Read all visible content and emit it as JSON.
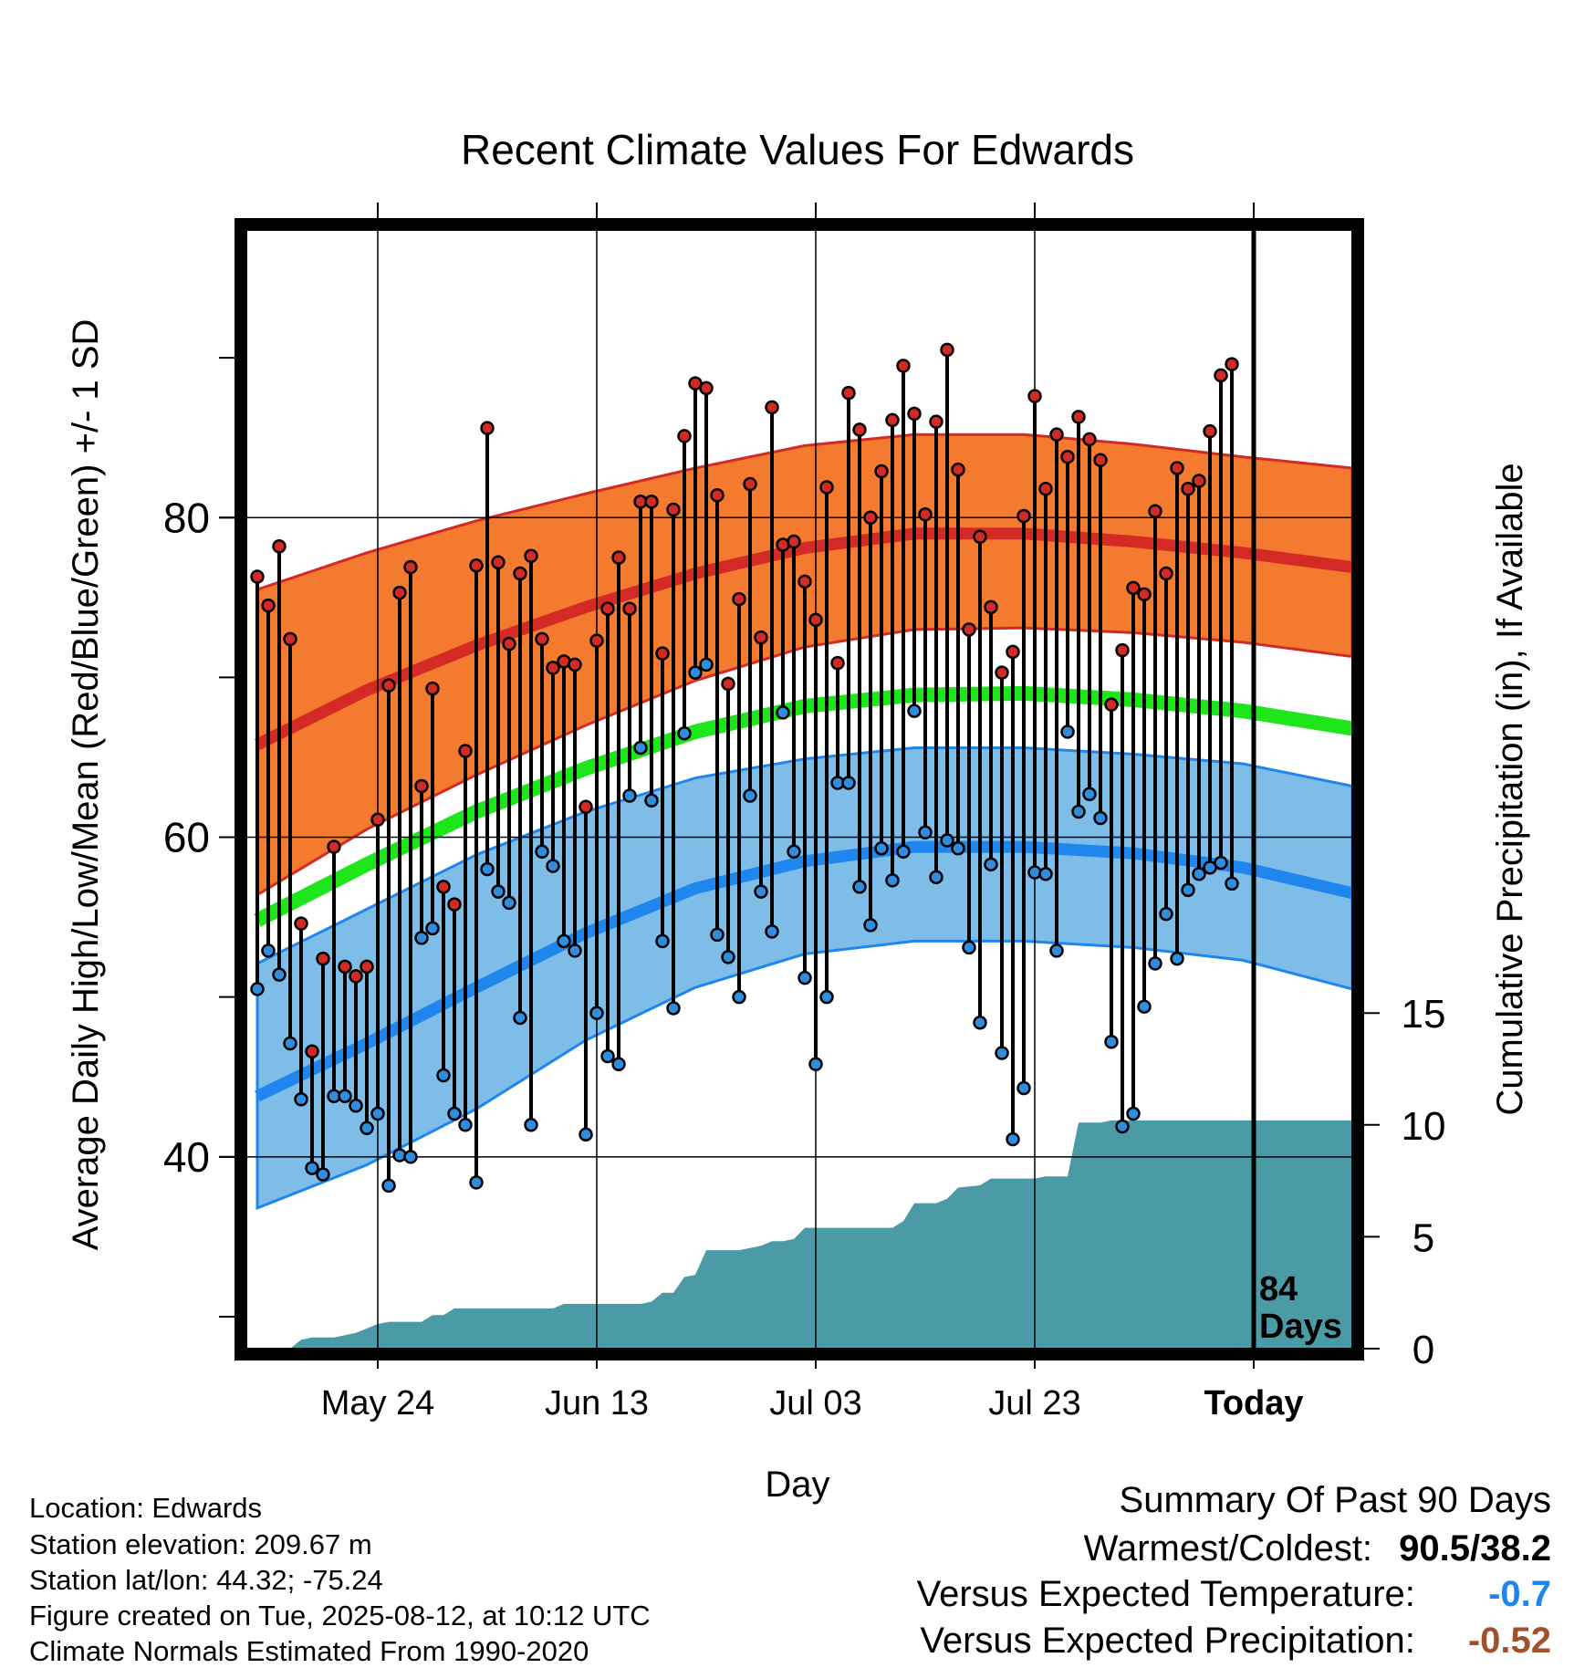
{
  "chart_data": {
    "type": "line",
    "title": "Recent Climate Values For Edwards",
    "xlabel": "Day",
    "ylabel": "Average Daily High/Low/Mean (Red/Blue/Green) +/- 1 SD",
    "y2label": "Cumulative Precipitation (in), If Available",
    "ylim": [
      28,
      98
    ],
    "y2lim": [
      0,
      50
    ],
    "x_ticks": [
      {
        "day": 20,
        "label": "May 24"
      },
      {
        "day": 40,
        "label": "Jun 13"
      },
      {
        "day": 60,
        "label": "Jul 03"
      },
      {
        "day": 80,
        "label": "Jul 23"
      },
      {
        "day": 100,
        "label": "Today"
      }
    ],
    "y_ticks": [
      40,
      60,
      80
    ],
    "y2_ticks": [
      0,
      5,
      10,
      15
    ],
    "today_day": 100,
    "today_annotation": [
      "84",
      "Days"
    ],
    "normals": {
      "days": [
        9,
        19,
        29,
        39,
        49,
        59,
        69,
        79,
        89,
        99,
        109
      ],
      "high_mean": [
        65.8,
        69.2,
        72.0,
        74.4,
        76.5,
        78.1,
        79.0,
        79.0,
        78.5,
        77.8,
        76.9
      ],
      "high_plus_sd": [
        75.5,
        77.8,
        79.8,
        81.5,
        83.1,
        84.5,
        85.2,
        85.2,
        84.6,
        83.8,
        83.1
      ],
      "high_minus_sd": [
        56.4,
        60.5,
        63.9,
        67.0,
        69.8,
        71.9,
        73.0,
        73.1,
        72.8,
        72.2,
        71.3
      ],
      "mean": [
        54.8,
        58.3,
        61.6,
        64.3,
        66.6,
        68.2,
        68.9,
        69.0,
        68.6,
        67.9,
        66.8
      ],
      "low_mean": [
        43.8,
        47.1,
        50.6,
        54.0,
        56.8,
        58.5,
        59.4,
        59.4,
        59.0,
        58.1,
        56.5
      ],
      "low_plus_sd": [
        52.1,
        55.5,
        58.9,
        61.6,
        63.7,
        64.9,
        65.6,
        65.6,
        65.2,
        64.6,
        63.2
      ],
      "low_minus_sd": [
        36.8,
        39.5,
        43.0,
        47.3,
        50.6,
        52.7,
        53.5,
        53.5,
        53.1,
        52.3,
        50.5
      ]
    },
    "daily": [
      {
        "day": 9,
        "high": 76.3,
        "low": 50.5
      },
      {
        "day": 10,
        "high": 74.5,
        "low": 52.9
      },
      {
        "day": 11,
        "high": 78.2,
        "low": 51.4
      },
      {
        "day": 12,
        "high": 72.4,
        "low": 47.1
      },
      {
        "day": 13,
        "high": 54.6,
        "low": 43.6
      },
      {
        "day": 14,
        "high": 46.6,
        "low": 39.3
      },
      {
        "day": 15,
        "high": 52.4,
        "low": 38.9
      },
      {
        "day": 16,
        "high": 59.4,
        "low": 43.8
      },
      {
        "day": 17,
        "high": 51.9,
        "low": 43.8
      },
      {
        "day": 18,
        "high": 51.3,
        "low": 43.2
      },
      {
        "day": 19,
        "high": 51.9,
        "low": 41.8
      },
      {
        "day": 20,
        "high": 61.1,
        "low": 42.7
      },
      {
        "day": 21,
        "high": 69.5,
        "low": 38.2
      },
      {
        "day": 22,
        "high": 75.3,
        "low": 40.1
      },
      {
        "day": 23,
        "high": 76.9,
        "low": 40.0
      },
      {
        "day": 24,
        "high": 63.2,
        "low": 53.7
      },
      {
        "day": 25,
        "high": 69.3,
        "low": 54.3
      },
      {
        "day": 26,
        "high": 56.9,
        "low": 45.1
      },
      {
        "day": 27,
        "high": 55.8,
        "low": 42.7
      },
      {
        "day": 28,
        "high": 65.4,
        "low": 42.0
      },
      {
        "day": 29,
        "high": 77.0,
        "low": 38.4
      },
      {
        "day": 30,
        "high": 85.6,
        "low": 58.0
      },
      {
        "day": 31,
        "high": 77.2,
        "low": 56.6
      },
      {
        "day": 32,
        "high": 72.1,
        "low": 55.9
      },
      {
        "day": 33,
        "high": 76.5,
        "low": 48.7
      },
      {
        "day": 34,
        "high": 77.6,
        "low": 42.0
      },
      {
        "day": 35,
        "high": 72.4,
        "low": 59.1
      },
      {
        "day": 36,
        "high": 70.6,
        "low": 58.2
      },
      {
        "day": 37,
        "high": 71.0,
        "low": 53.5
      },
      {
        "day": 38,
        "high": 70.8,
        "low": 52.9
      },
      {
        "day": 39,
        "high": 61.9,
        "low": 41.4
      },
      {
        "day": 40,
        "high": 72.3,
        "low": 49.0
      },
      {
        "day": 41,
        "high": 74.3,
        "low": 46.3
      },
      {
        "day": 42,
        "high": 77.5,
        "low": 45.8
      },
      {
        "day": 43,
        "high": 74.3,
        "low": 62.6
      },
      {
        "day": 44,
        "high": 81.0,
        "low": 65.6
      },
      {
        "day": 45,
        "high": 81.0,
        "low": 62.3
      },
      {
        "day": 46,
        "high": 71.5,
        "low": 53.5
      },
      {
        "day": 47,
        "high": 80.5,
        "low": 49.3
      },
      {
        "day": 48,
        "high": 85.1,
        "low": 66.5
      },
      {
        "day": 49,
        "high": 88.4,
        "low": 70.3
      },
      {
        "day": 50,
        "high": 88.1,
        "low": 70.8
      },
      {
        "day": 51,
        "high": 81.4,
        "low": 53.9
      },
      {
        "day": 52,
        "high": 69.6,
        "low": 52.5
      },
      {
        "day": 53,
        "high": 74.9,
        "low": 50.0
      },
      {
        "day": 54,
        "high": 82.1,
        "low": 62.6
      },
      {
        "day": 55,
        "high": 72.5,
        "low": 56.6
      },
      {
        "day": 56,
        "high": 86.9,
        "low": 54.1
      },
      {
        "day": 57,
        "high": 78.3,
        "low": 67.8
      },
      {
        "day": 58,
        "high": 78.5,
        "low": 59.1
      },
      {
        "day": 59,
        "high": 76.0,
        "low": 51.2
      },
      {
        "day": 60,
        "high": 73.6,
        "low": 45.8
      },
      {
        "day": 61,
        "high": 81.9,
        "low": 50.0
      },
      {
        "day": 62,
        "high": 70.9,
        "low": 63.4
      },
      {
        "day": 63,
        "high": 87.8,
        "low": 63.4
      },
      {
        "day": 64,
        "high": 85.5,
        "low": 56.9
      },
      {
        "day": 65,
        "high": 80.0,
        "low": 54.5
      },
      {
        "day": 66,
        "high": 82.9,
        "low": 59.3
      },
      {
        "day": 67,
        "high": 86.1,
        "low": 57.3
      },
      {
        "day": 68,
        "high": 89.5,
        "low": 59.1
      },
      {
        "day": 69,
        "high": 86.5,
        "low": 67.9
      },
      {
        "day": 70,
        "high": 80.2,
        "low": 60.3
      },
      {
        "day": 71,
        "high": 86.0,
        "low": 57.5
      },
      {
        "day": 72,
        "high": 90.5,
        "low": 59.8
      },
      {
        "day": 73,
        "high": 83.0,
        "low": 59.3
      },
      {
        "day": 74,
        "high": 73.0,
        "low": 53.1
      },
      {
        "day": 75,
        "high": 78.8,
        "low": 48.4
      },
      {
        "day": 76,
        "high": 74.4,
        "low": 58.3
      },
      {
        "day": 77,
        "high": 70.3,
        "low": 46.5
      },
      {
        "day": 78,
        "high": 71.6,
        "low": 41.1
      },
      {
        "day": 79,
        "high": 80.1,
        "low": 44.3
      },
      {
        "day": 80,
        "high": 87.6,
        "low": 57.8
      },
      {
        "day": 81,
        "high": 81.8,
        "low": 57.7
      },
      {
        "day": 82,
        "high": 85.2,
        "low": 52.9
      },
      {
        "day": 83,
        "high": 83.8,
        "low": 66.6
      },
      {
        "day": 84,
        "high": 86.3,
        "low": 61.6
      },
      {
        "day": 85,
        "high": 84.9,
        "low": 62.7
      },
      {
        "day": 86,
        "high": 83.6,
        "low": 61.2
      },
      {
        "day": 87,
        "high": 68.3,
        "low": 47.2
      },
      {
        "day": 88,
        "high": 71.7,
        "low": 41.9
      },
      {
        "day": 89,
        "high": 75.6,
        "low": 42.7
      },
      {
        "day": 90,
        "high": 75.2,
        "low": 49.4
      },
      {
        "day": 91,
        "high": 80.4,
        "low": 52.1
      },
      {
        "day": 92,
        "high": 76.5,
        "low": 55.2
      },
      {
        "day": 93,
        "high": 83.1,
        "low": 52.4
      },
      {
        "day": 94,
        "high": 81.8,
        "low": 56.7
      },
      {
        "day": 95,
        "high": 82.3,
        "low": 57.7
      },
      {
        "day": 96,
        "high": 85.4,
        "low": 58.1
      },
      {
        "day": 97,
        "high": 88.9,
        "low": 58.4
      },
      {
        "day": 98,
        "high": 89.6,
        "low": 57.1
      }
    ],
    "precip_cumulative": [
      {
        "day": 12,
        "value": 0
      },
      {
        "day": 13,
        "value": 0.4
      },
      {
        "day": 14,
        "value": 0.5
      },
      {
        "day": 16,
        "value": 0.5
      },
      {
        "day": 17,
        "value": 0.6
      },
      {
        "day": 18,
        "value": 0.7
      },
      {
        "day": 20,
        "value": 1.1
      },
      {
        "day": 21,
        "value": 1.2
      },
      {
        "day": 24,
        "value": 1.2
      },
      {
        "day": 25,
        "value": 1.5
      },
      {
        "day": 26,
        "value": 1.5
      },
      {
        "day": 27,
        "value": 1.8
      },
      {
        "day": 36,
        "value": 1.8
      },
      {
        "day": 37,
        "value": 2.0
      },
      {
        "day": 44,
        "value": 2.0
      },
      {
        "day": 45,
        "value": 2.1
      },
      {
        "day": 46,
        "value": 2.5
      },
      {
        "day": 47,
        "value": 2.5
      },
      {
        "day": 48,
        "value": 3.2
      },
      {
        "day": 49,
        "value": 3.3
      },
      {
        "day": 50,
        "value": 4.4
      },
      {
        "day": 53,
        "value": 4.4
      },
      {
        "day": 54,
        "value": 4.5
      },
      {
        "day": 55,
        "value": 4.6
      },
      {
        "day": 56,
        "value": 4.8
      },
      {
        "day": 57,
        "value": 4.8
      },
      {
        "day": 58,
        "value": 4.9
      },
      {
        "day": 59,
        "value": 5.4
      },
      {
        "day": 67,
        "value": 5.4
      },
      {
        "day": 68,
        "value": 5.7
      },
      {
        "day": 69,
        "value": 6.5
      },
      {
        "day": 71,
        "value": 6.5
      },
      {
        "day": 72,
        "value": 6.7
      },
      {
        "day": 73,
        "value": 7.2
      },
      {
        "day": 75,
        "value": 7.3
      },
      {
        "day": 76,
        "value": 7.6
      },
      {
        "day": 80,
        "value": 7.6
      },
      {
        "day": 81,
        "value": 7.7
      },
      {
        "day": 83,
        "value": 7.7
      },
      {
        "day": 84,
        "value": 10.1
      },
      {
        "day": 86,
        "value": 10.1
      },
      {
        "day": 87,
        "value": 10.2
      },
      {
        "day": 109,
        "value": 10.2
      }
    ],
    "colors": {
      "high_band": "#f47a2f",
      "high_line": "#d42a26",
      "mean_line": "#1ee61a",
      "low_band": "#7ebde8",
      "low_line": "#1f86ee",
      "precip": "#4a9ba6",
      "high_dot": "#d42a26",
      "low_dot": "#2f8de0"
    },
    "grid": true
  },
  "info": {
    "location": "Location: Edwards",
    "elevation": "Station elevation: 209.67 m",
    "latlon": "Station lat/lon: 44.32; -75.24",
    "created": "Figure created on Tue, 2025-08-12, at 10:12 UTC",
    "normals": "Climate Normals Estimated From 1990-2020"
  },
  "summary": {
    "title": "Summary Of Past 90 Days",
    "warmest_coldest_label": "Warmest/Coldest:",
    "warmest_coldest_value": "90.5/38.2",
    "temp_label": "Versus Expected Temperature:",
    "temp_value": "-0.7",
    "temp_color": "#1f86ee",
    "precip_label": "Versus Expected Precipitation:",
    "precip_value": "-0.52",
    "precip_color": "#a0522d"
  }
}
